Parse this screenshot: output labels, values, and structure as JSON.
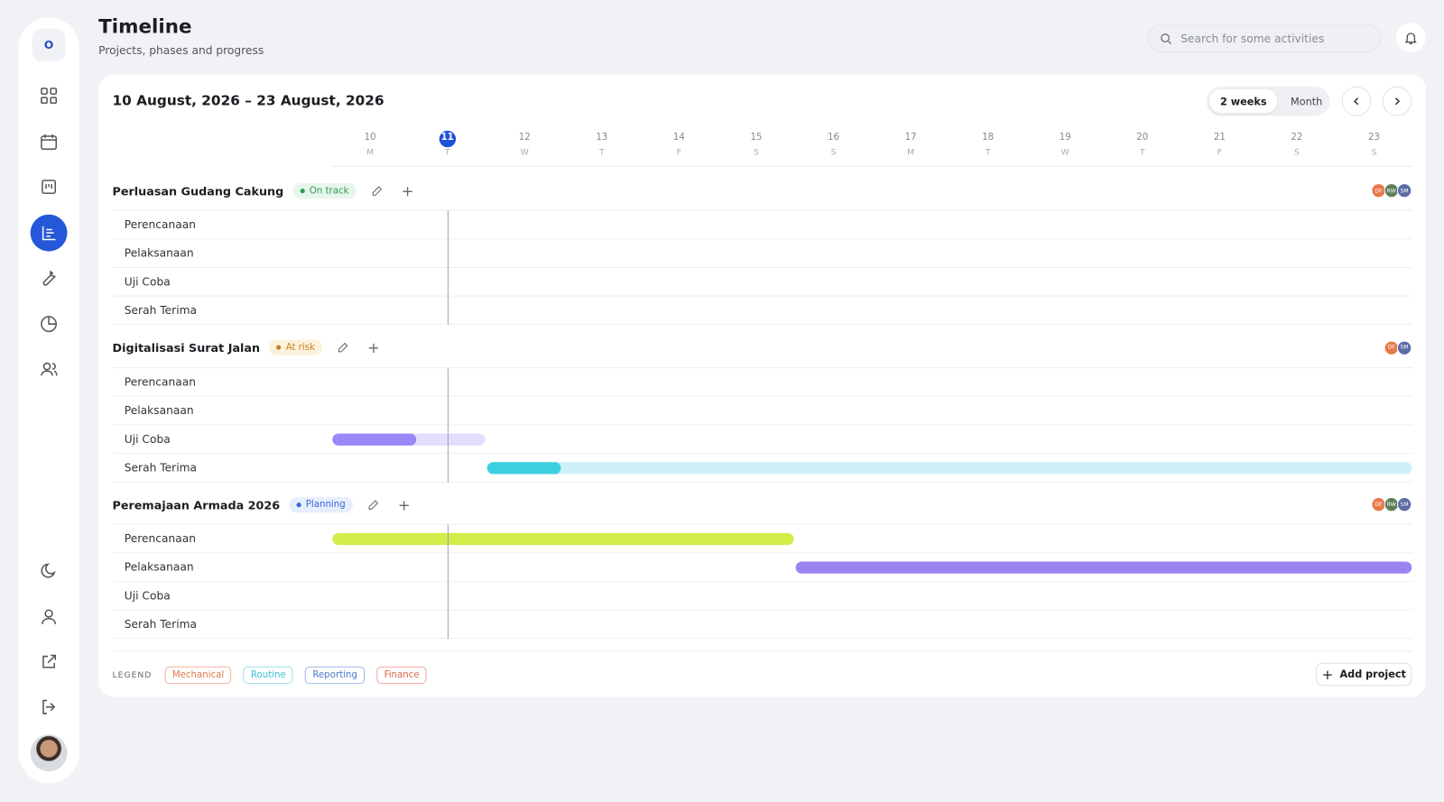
{
  "header": {
    "title": "Timeline",
    "subtitle": "Projects, phases and progress",
    "search_placeholder": "Search for some activities"
  },
  "sidebar": {
    "logo": "O"
  },
  "range": "10 August, 2026 – 23 August, 2026",
  "view_options": [
    "2 weeks",
    "Month"
  ],
  "days": [
    10,
    11,
    12,
    13,
    14,
    15,
    16,
    17,
    18,
    19,
    20,
    21,
    22,
    23
  ],
  "weekdays": [
    "M",
    "T",
    "W",
    "T",
    "F",
    "S",
    "S",
    "M",
    "T",
    "W",
    "T",
    "F",
    "S",
    "S"
  ],
  "today": 11,
  "projects": [
    {
      "name": "Perluasan Gudang Cakung",
      "status": "On track",
      "avatars": [
        "DF",
        "RW",
        "SM"
      ],
      "phases": [
        {
          "name": "Perencanaan"
        },
        {
          "name": "Pelaksanaan"
        },
        {
          "name": "Uji Coba"
        },
        {
          "name": "Serah Terima"
        }
      ]
    },
    {
      "name": "Digitalisasi Surat Jalan",
      "status": "At risk",
      "avatars": [
        "DF",
        "SM"
      ],
      "phases": [
        {
          "name": "Perencanaan"
        },
        {
          "name": "Pelaksanaan"
        },
        {
          "name": "Uji Coba",
          "bar": {
            "start": 10,
            "end": 11,
            "progress": 55,
            "color": "#9b87f5",
            "track": "#e4defc"
          }
        },
        {
          "name": "Serah Terima",
          "bar": {
            "start": 12,
            "end": 23,
            "progress": 8,
            "color": "#3dcfe0",
            "track": "#cdf1f7"
          }
        }
      ]
    },
    {
      "name": "Peremajaan Armada 2026",
      "status": "Planning",
      "avatars": [
        "DF",
        "RW",
        "SM"
      ],
      "phases": [
        {
          "name": "Perencanaan",
          "bar": {
            "start": 10,
            "end": 15,
            "progress": 100,
            "color": "#d4ec4a",
            "track": "#eef7c0"
          }
        },
        {
          "name": "Pelaksanaan",
          "bar": {
            "start": 16,
            "end": 23,
            "progress": 100,
            "color": "#9a85f0",
            "track": "#e4defc"
          }
        },
        {
          "name": "Uji Coba"
        },
        {
          "name": "Serah Terima"
        }
      ]
    }
  ],
  "legend": {
    "label": "LEGEND",
    "items": [
      "Mechanical",
      "Routine",
      "Reporting",
      "Finance"
    ]
  },
  "add_project": "Add project"
}
